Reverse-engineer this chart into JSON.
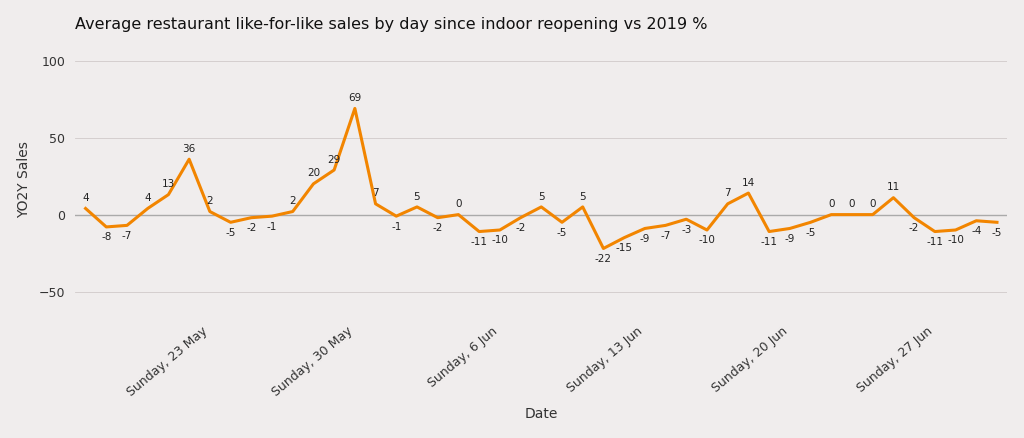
{
  "title": "Average restaurant like-for-like sales by day since indoor reopening vs 2019 %",
  "xlabel": "Date",
  "ylabel": "YO2Y Sales",
  "line_color": "#F28500",
  "background_color": "#F0EDED",
  "zero_line_color": "#AAAAAA",
  "ylim": [
    -65,
    110
  ],
  "yticks": [
    -50,
    0,
    50,
    100
  ],
  "values": [
    4,
    -8,
    -7,
    4,
    13,
    36,
    2,
    -5,
    -2,
    -1,
    2,
    20,
    29,
    69,
    7,
    -1,
    5,
    -2,
    0,
    -11,
    -10,
    -2,
    5,
    -5,
    5,
    -22,
    -15,
    -9,
    -7,
    -3,
    -10,
    7,
    14,
    -11,
    -9,
    -5,
    0,
    0,
    0,
    11,
    -2,
    -11,
    -10,
    -4,
    -5
  ],
  "xtick_positions": [
    6,
    13,
    20,
    27,
    34,
    41
  ],
  "xtick_labels": [
    "Sunday, 23 May",
    "Sunday, 30 May",
    "Sunday, 6 Jun",
    "Sunday, 13 Jun",
    "Sunday, 20 Jun",
    "Sunday, 27 Jun"
  ]
}
